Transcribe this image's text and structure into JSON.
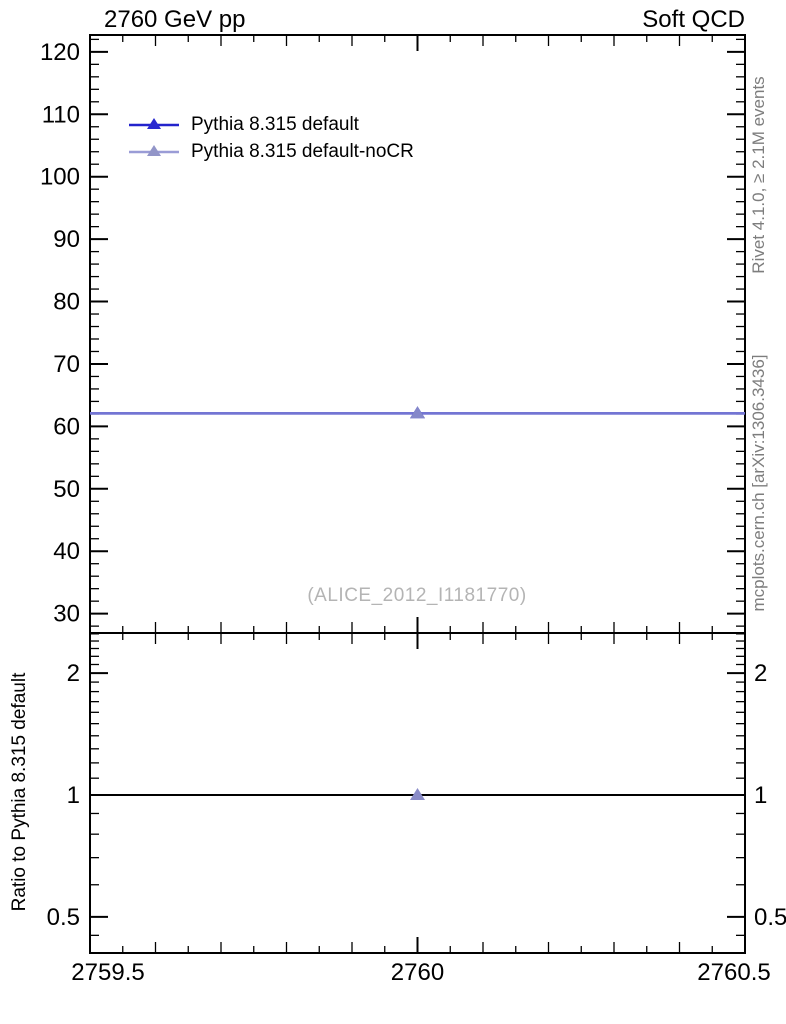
{
  "header": {
    "title_left": "2760 GeV pp",
    "title_right": "Soft QCD"
  },
  "annotations": {
    "rivet": "Rivet 4.1.0, ≥ 2.1M events",
    "mcplots": "mcplots.cern.ch [arXiv:1306.3436]",
    "watermark": "(ALICE_2012_I1181770)"
  },
  "legend": [
    {
      "label": "Pythia 8.315 default",
      "line_color": "#2323cc",
      "marker_color": "#2a2ad0",
      "marker": "triangle-up"
    },
    {
      "label": "Pythia 8.315 default-noCR",
      "line_color": "#9a9cd6",
      "marker_color": "#9295c8",
      "marker": "triangle-up"
    }
  ],
  "chart_data": {
    "type": "line",
    "title": "2760 GeV pp",
    "context_tag": "Soft QCD",
    "grid": false,
    "legend_position": "top-left-inside",
    "x": {
      "lim": [
        2759.5,
        2760.5
      ],
      "major_ticks": [
        2759.5,
        2760,
        2760.5
      ],
      "tick_labels": [
        "2759.5",
        "2760",
        "2760.5"
      ],
      "medium_step": 0.1,
      "minor_step": 0.05
    },
    "main_panel": {
      "scale": "linear",
      "ylim": [
        26.9,
        122.7
      ],
      "major_ticks": [
        30,
        40,
        50,
        60,
        70,
        80,
        90,
        100,
        110,
        120
      ],
      "tick_labels": [
        "30",
        "40",
        "50",
        "60",
        "70",
        "80",
        "90",
        "100",
        "110",
        "120"
      ],
      "minor_step": 2,
      "series": [
        {
          "name": "Pythia 8.315 default",
          "color": "#2323cc",
          "marker_color": "#2a2ad0",
          "marker": "triangle-up",
          "x": 2760,
          "y": 62.1,
          "x_bin": [
            2759.5,
            2760.5
          ],
          "y_err": [
            61.5,
            62.7
          ]
        },
        {
          "name": "Pythia 8.315 default-noCR",
          "color": "#9a9cd6",
          "marker_color": "#9295c8",
          "marker": "triangle-up",
          "x": 2760,
          "y": 62.1,
          "x_bin": [
            2759.5,
            2760.5
          ],
          "y_err": [
            61.5,
            62.7
          ]
        }
      ]
    },
    "ratio_panel": {
      "scale": "log",
      "ylabel": "Ratio to Pythia 8.315 default",
      "ylim": [
        0.407,
        2.512
      ],
      "major_ticks": [
        0.5,
        1,
        2
      ],
      "tick_labels": [
        "0.5",
        "1",
        "2"
      ],
      "minor_ticks": [
        0.45,
        0.6,
        0.7,
        0.8,
        0.9,
        1.1,
        1.2,
        1.3,
        1.4,
        1.5,
        1.6,
        1.7,
        1.8,
        1.9,
        2.1,
        2.2,
        2.3,
        2.4,
        2.5
      ],
      "series": [
        {
          "name": "Pythia 8.315 default",
          "color": "#000000",
          "style": "line",
          "x_bin": [
            2759.5,
            2760.5
          ],
          "y": 1
        },
        {
          "name": "Pythia 8.315 default-noCR",
          "color": "#8a8cc8",
          "style": "marker",
          "marker": "triangle-up",
          "x": 2760,
          "y": 1
        }
      ]
    }
  }
}
